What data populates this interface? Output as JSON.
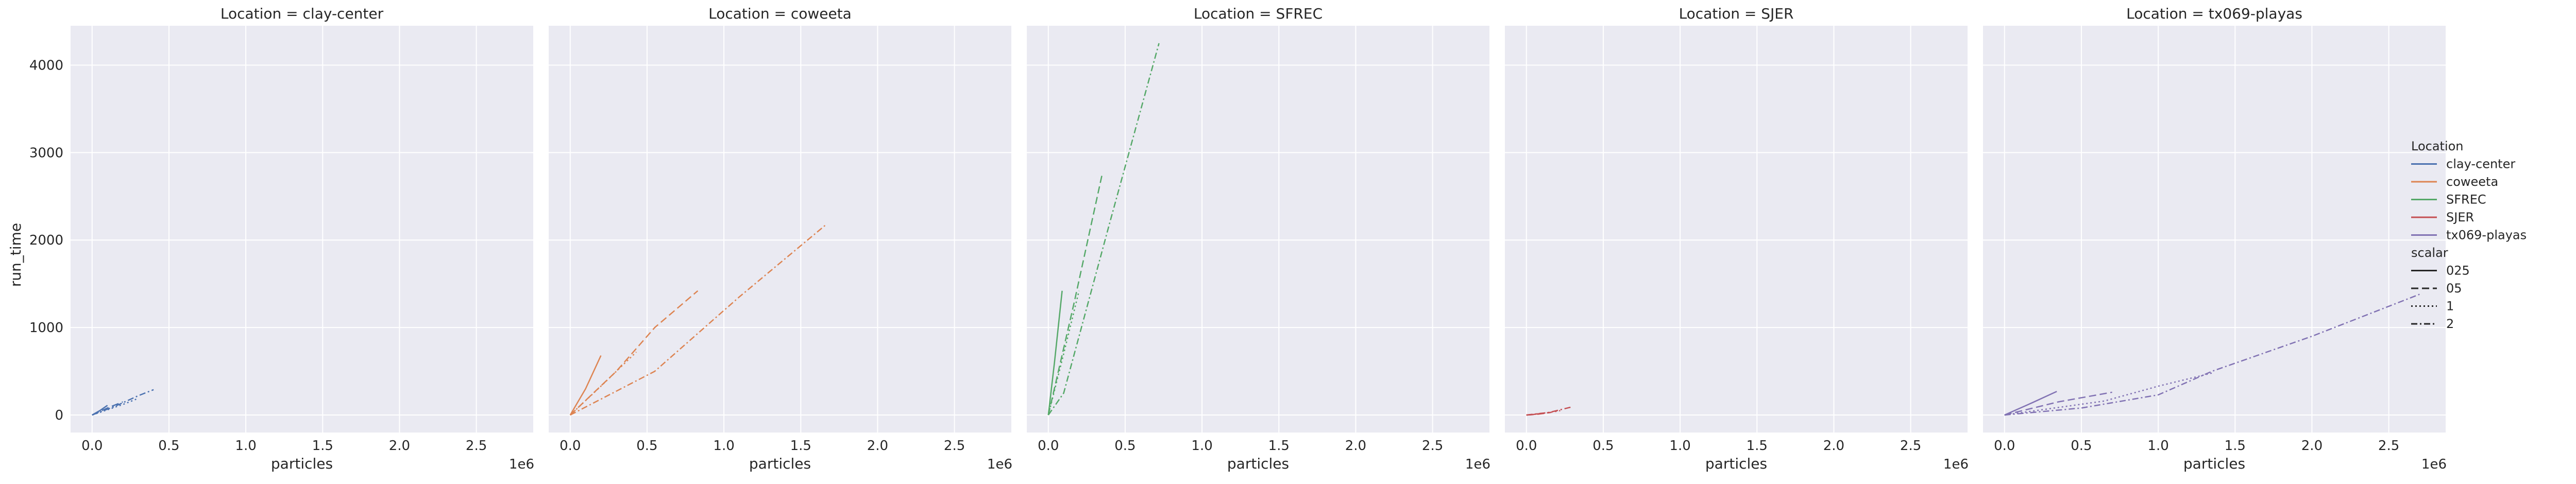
{
  "chart_data": {
    "type": "line",
    "ylabel": "run_time",
    "xlabel": "particles",
    "x_offset_label": "1e6",
    "ylim": [
      -200,
      4450
    ],
    "xlim": [
      -140000,
      2870000
    ],
    "x_ticks": [
      0,
      500000,
      1000000,
      1500000,
      2000000,
      2500000
    ],
    "x_tick_labels": [
      "0.0",
      "0.5",
      "1.0",
      "1.5",
      "2.0",
      "2.5"
    ],
    "y_ticks": [
      0,
      1000,
      2000,
      3000,
      4000
    ],
    "y_tick_labels": [
      "0",
      "1000",
      "2000",
      "3000",
      "4000"
    ],
    "grid": true,
    "legend": {
      "placement": "right",
      "hue_title": "Location",
      "style_title": "scalar",
      "hue_entries": [
        {
          "label": "clay-center",
          "color": "#4c72b0"
        },
        {
          "label": "coweeta",
          "color": "#dd8452"
        },
        {
          "label": "SFREC",
          "color": "#55a868"
        },
        {
          "label": "SJER",
          "color": "#c44e52"
        },
        {
          "label": "tx069-playas",
          "color": "#8172b3"
        }
      ],
      "style_entries": [
        {
          "label": "025",
          "dash": "solid"
        },
        {
          "label": "05",
          "dash": "dashed"
        },
        {
          "label": "1",
          "dash": "dotted"
        },
        {
          "label": "2",
          "dash": "dashdot"
        }
      ]
    },
    "panels": [
      {
        "title": "Location = clay-center",
        "color": "#4c72b0",
        "series": [
          {
            "scalar": "025",
            "x": [
              0,
              20000,
              50000,
              100000
            ],
            "y": [
              0,
              20,
              50,
              110
            ]
          },
          {
            "scalar": "05",
            "x": [
              0,
              50000,
              100000,
              200000
            ],
            "y": [
              0,
              40,
              80,
              150
            ]
          },
          {
            "scalar": "1",
            "x": [
              0,
              100000,
              200000,
              300000
            ],
            "y": [
              0,
              60,
              120,
              190
            ]
          },
          {
            "scalar": "2",
            "x": [
              0,
              150000,
              300000,
              400000
            ],
            "y": [
              0,
              100,
              220,
              290
            ]
          }
        ]
      },
      {
        "title": "Location = coweeta",
        "color": "#dd8452",
        "series": [
          {
            "scalar": "025",
            "x": [
              0,
              100000,
              200000
            ],
            "y": [
              0,
              300,
              680
            ]
          },
          {
            "scalar": "05",
            "x": [
              0,
              300000,
              550000,
              830000
            ],
            "y": [
              0,
              500,
              1000,
              1420
            ]
          },
          {
            "scalar": "1",
            "x": [
              0,
              200000,
              430000
            ],
            "y": [
              0,
              330,
              720
            ]
          },
          {
            "scalar": "2",
            "x": [
              0,
              550000,
              1100000,
              1660000
            ],
            "y": [
              0,
              500,
              1350,
              2170
            ]
          }
        ]
      },
      {
        "title": "Location = SFREC",
        "color": "#55a868",
        "series": [
          {
            "scalar": "025",
            "x": [
              0,
              40000,
              90000
            ],
            "y": [
              0,
              600,
              1420
            ]
          },
          {
            "scalar": "05",
            "x": [
              0,
              170000,
              350000
            ],
            "y": [
              0,
              1300,
              2750
            ]
          },
          {
            "scalar": "1",
            "x": [
              0,
              100000,
              200000
            ],
            "y": [
              0,
              700,
              1420
            ]
          },
          {
            "scalar": "2",
            "x": [
              0,
              100000,
              400000,
              720000
            ],
            "y": [
              0,
              250,
              2200,
              4250
            ]
          }
        ]
      },
      {
        "title": "Location = SJER",
        "color": "#c44e52",
        "series": [
          {
            "scalar": "025",
            "x": [
              0,
              40000,
              80000
            ],
            "y": [
              0,
              5,
              15
            ]
          },
          {
            "scalar": "05",
            "x": [
              0,
              80000,
              160000
            ],
            "y": [
              0,
              10,
              30
            ]
          },
          {
            "scalar": "1",
            "x": [
              0,
              120000,
              220000
            ],
            "y": [
              0,
              20,
              50
            ]
          },
          {
            "scalar": "2",
            "x": [
              0,
              150000,
              290000
            ],
            "y": [
              0,
              30,
              90
            ]
          }
        ]
      },
      {
        "title": "Location = tx069-playas",
        "color": "#8172b3",
        "series": [
          {
            "scalar": "025",
            "x": [
              0,
              180000,
              340000
            ],
            "y": [
              0,
              140,
              270
            ]
          },
          {
            "scalar": "05",
            "x": [
              0,
              350000,
              700000
            ],
            "y": [
              0,
              150,
              260
            ]
          },
          {
            "scalar": "1",
            "x": [
              0,
              650000,
              1000000,
              1350000
            ],
            "y": [
              0,
              160,
              330,
              480
            ]
          },
          {
            "scalar": "2",
            "x": [
              0,
              500000,
              1000000,
              1350000,
              2000000,
              2700000
            ],
            "y": [
              0,
              80,
              230,
              500,
              900,
              1380
            ]
          }
        ]
      }
    ]
  }
}
